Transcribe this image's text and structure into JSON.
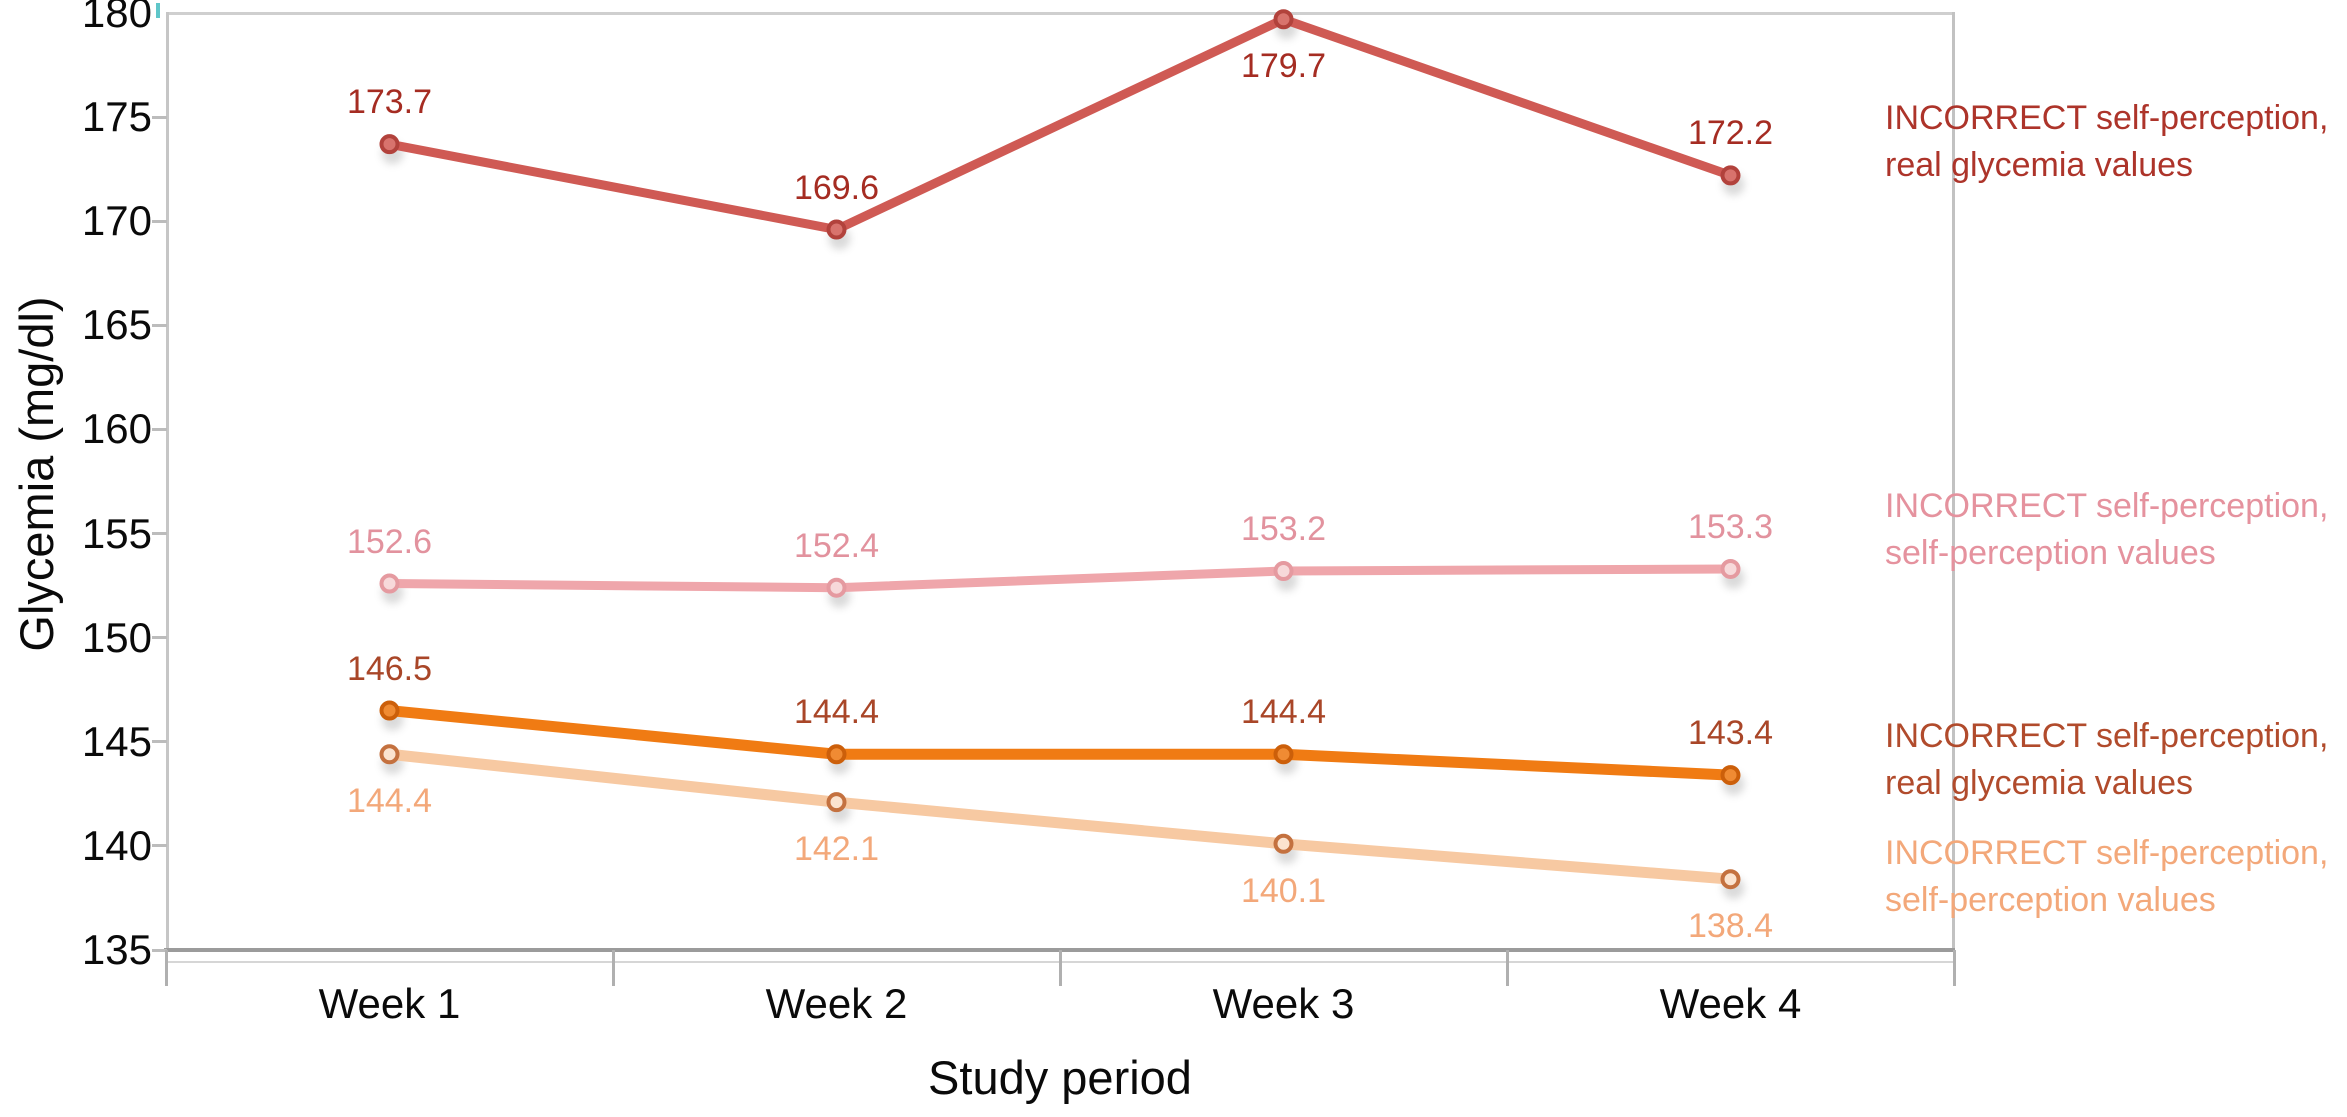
{
  "chart_data": {
    "type": "line",
    "title": "",
    "xlabel": "Study period",
    "ylabel": "Glycemia (mg/dl)",
    "x_categories": [
      "Week 1",
      "Week 2",
      "Week 3",
      "Week 4"
    ],
    "ylim": [
      135,
      180
    ],
    "yticks": [
      135,
      140,
      145,
      150,
      155,
      160,
      165,
      170,
      175,
      180
    ],
    "grid": false,
    "legend_position": "right",
    "series": [
      {
        "name": "incorrect-self-perception-real-glycemia-high",
        "values": [
          173.7,
          169.6,
          179.7,
          172.2
        ],
        "value_labels": [
          "173.7",
          "169.6",
          "179.7",
          "172.2"
        ],
        "label_positions": [
          "above",
          "above",
          "below",
          "above"
        ],
        "line_color": "#cf5a54",
        "marker_fill": "#d8736d",
        "marker_stroke": "#b2423c",
        "label_color": "#a52c22",
        "line_width": 9,
        "legend": {
          "line1": "INCORRECT self-perception,",
          "line2": "real glycemia values",
          "color": "#ad342a"
        }
      },
      {
        "name": "incorrect-self-perception-self-perception-high",
        "values": [
          152.6,
          152.4,
          153.2,
          153.3
        ],
        "value_labels": [
          "152.6",
          "152.4",
          "153.2",
          "153.3"
        ],
        "label_positions": [
          "above",
          "above",
          "above",
          "above"
        ],
        "line_color": "#efa6ab",
        "marker_fill": "#f7d9da",
        "marker_stroke": "#e59aa0",
        "label_color": "#e2929e",
        "line_width": 9,
        "legend": {
          "line1": "INCORRECT self-perception,",
          "line2": "self-perception values",
          "color": "#e5929e"
        }
      },
      {
        "name": "incorrect-self-perception-real-glycemia-low",
        "values": [
          146.5,
          144.4,
          144.4,
          143.4
        ],
        "value_labels": [
          "146.5",
          "144.4",
          "144.4",
          "143.4"
        ],
        "label_positions": [
          "above",
          "above",
          "above",
          "above"
        ],
        "line_color": "#f07b13",
        "marker_fill": "#f08b33",
        "marker_stroke": "#cc5f0a",
        "label_color": "#a94628",
        "line_width": 11,
        "legend": {
          "line1": "INCORRECT self-perception,",
          "line2": "real glycemia values",
          "color": "#b14b2c"
        }
      },
      {
        "name": "incorrect-self-perception-self-perception-low",
        "values": [
          144.4,
          142.1,
          140.1,
          138.4
        ],
        "value_labels": [
          "144.4",
          "142.1",
          "140.1",
          "138.4"
        ],
        "label_positions": [
          "below",
          "below",
          "below",
          "below"
        ],
        "line_color": "#f7c9a2",
        "marker_fill": "#fbe3cf",
        "marker_stroke": "#c4713f",
        "label_color": "#f3a87a",
        "line_width": 11,
        "legend": {
          "line1": "INCORRECT self-perception,",
          "line2": "self-perception values",
          "color": "#f3a87a"
        }
      }
    ]
  }
}
